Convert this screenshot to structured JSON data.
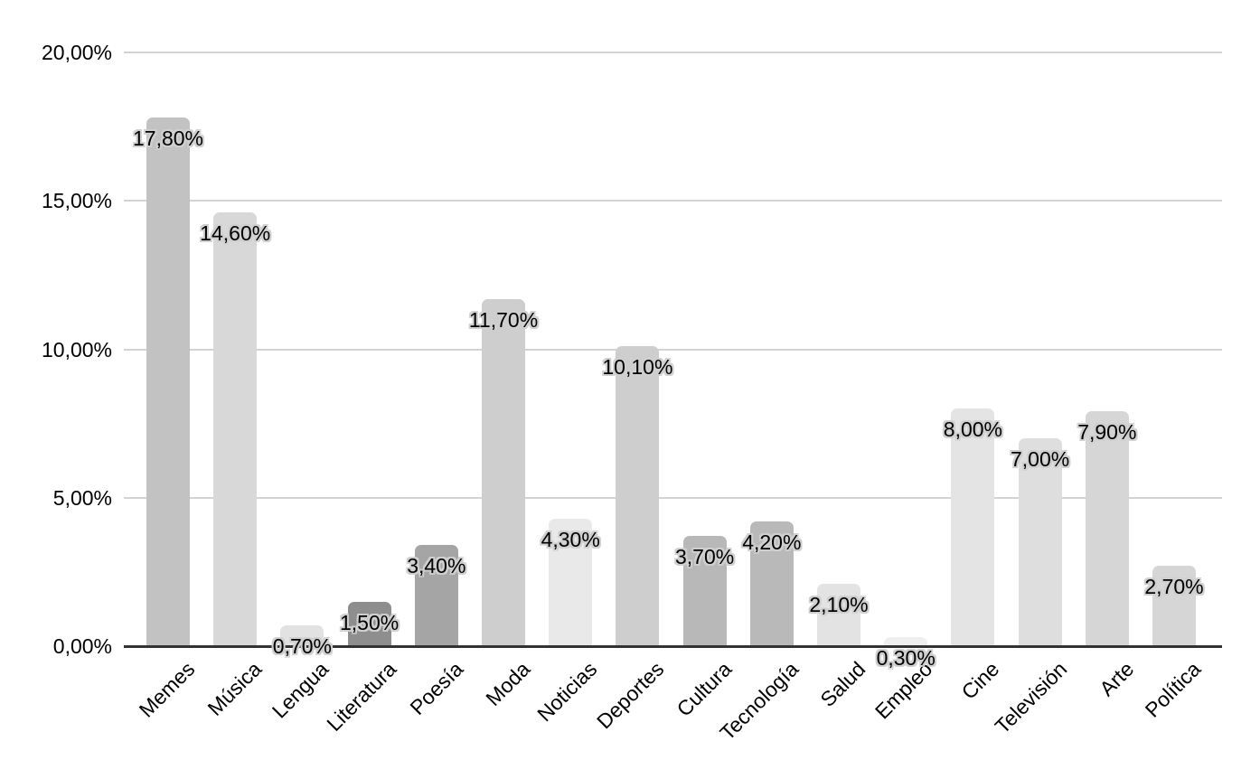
{
  "chart_data": {
    "type": "bar",
    "categories": [
      "Memes",
      "Música",
      "Lengua",
      "Literatura",
      "Poesía",
      "Moda",
      "Noticias",
      "Deportes",
      "Cultura",
      "Tecnología",
      "Salud",
      "Empleo",
      "Cine",
      "Televisión",
      "Arte",
      "Política"
    ],
    "values": [
      17.8,
      14.6,
      0.7,
      1.5,
      3.4,
      11.7,
      4.3,
      10.1,
      3.7,
      4.2,
      2.1,
      0.3,
      8.0,
      7.0,
      7.9,
      2.7
    ],
    "value_labels": [
      "17,80%",
      "14,60%",
      "0,70%",
      "1,50%",
      "3,40%",
      "11,70%",
      "4,30%",
      "10,10%",
      "3,70%",
      "4,20%",
      "2,10%",
      "0,30%",
      "8,00%",
      "7,00%",
      "7,90%",
      "2,70%"
    ],
    "bar_colors": [
      "#c2c2c2",
      "#d8d8d8",
      "#e2e2e2",
      "#8e8e8e",
      "#a5a5a5",
      "#cecece",
      "#e9e9e9",
      "#cecece",
      "#b8b8b8",
      "#b9b9b9",
      "#e3e3e3",
      "#efefef",
      "#e4e4e4",
      "#dedede",
      "#d6d6d6",
      "#d6d6d6"
    ],
    "xlabel": "",
    "ylabel": "",
    "ylim": [
      0,
      20
    ],
    "grid": true,
    "legend_position": "none",
    "y_axis": {
      "ticks": [
        {
          "value": 20,
          "label": "20,00%"
        },
        {
          "value": 15,
          "label": "15,00%"
        },
        {
          "value": 10,
          "label": "10,00%"
        },
        {
          "value": 5,
          "label": "5,00%"
        },
        {
          "value": 0,
          "label": "0,00%"
        }
      ]
    },
    "style_colors": {
      "background": "#ffffff",
      "gridline": "#d3d3d3",
      "axis_line": "#333333",
      "label_text": "#000000",
      "label_halo": "#cfcfcf"
    }
  }
}
